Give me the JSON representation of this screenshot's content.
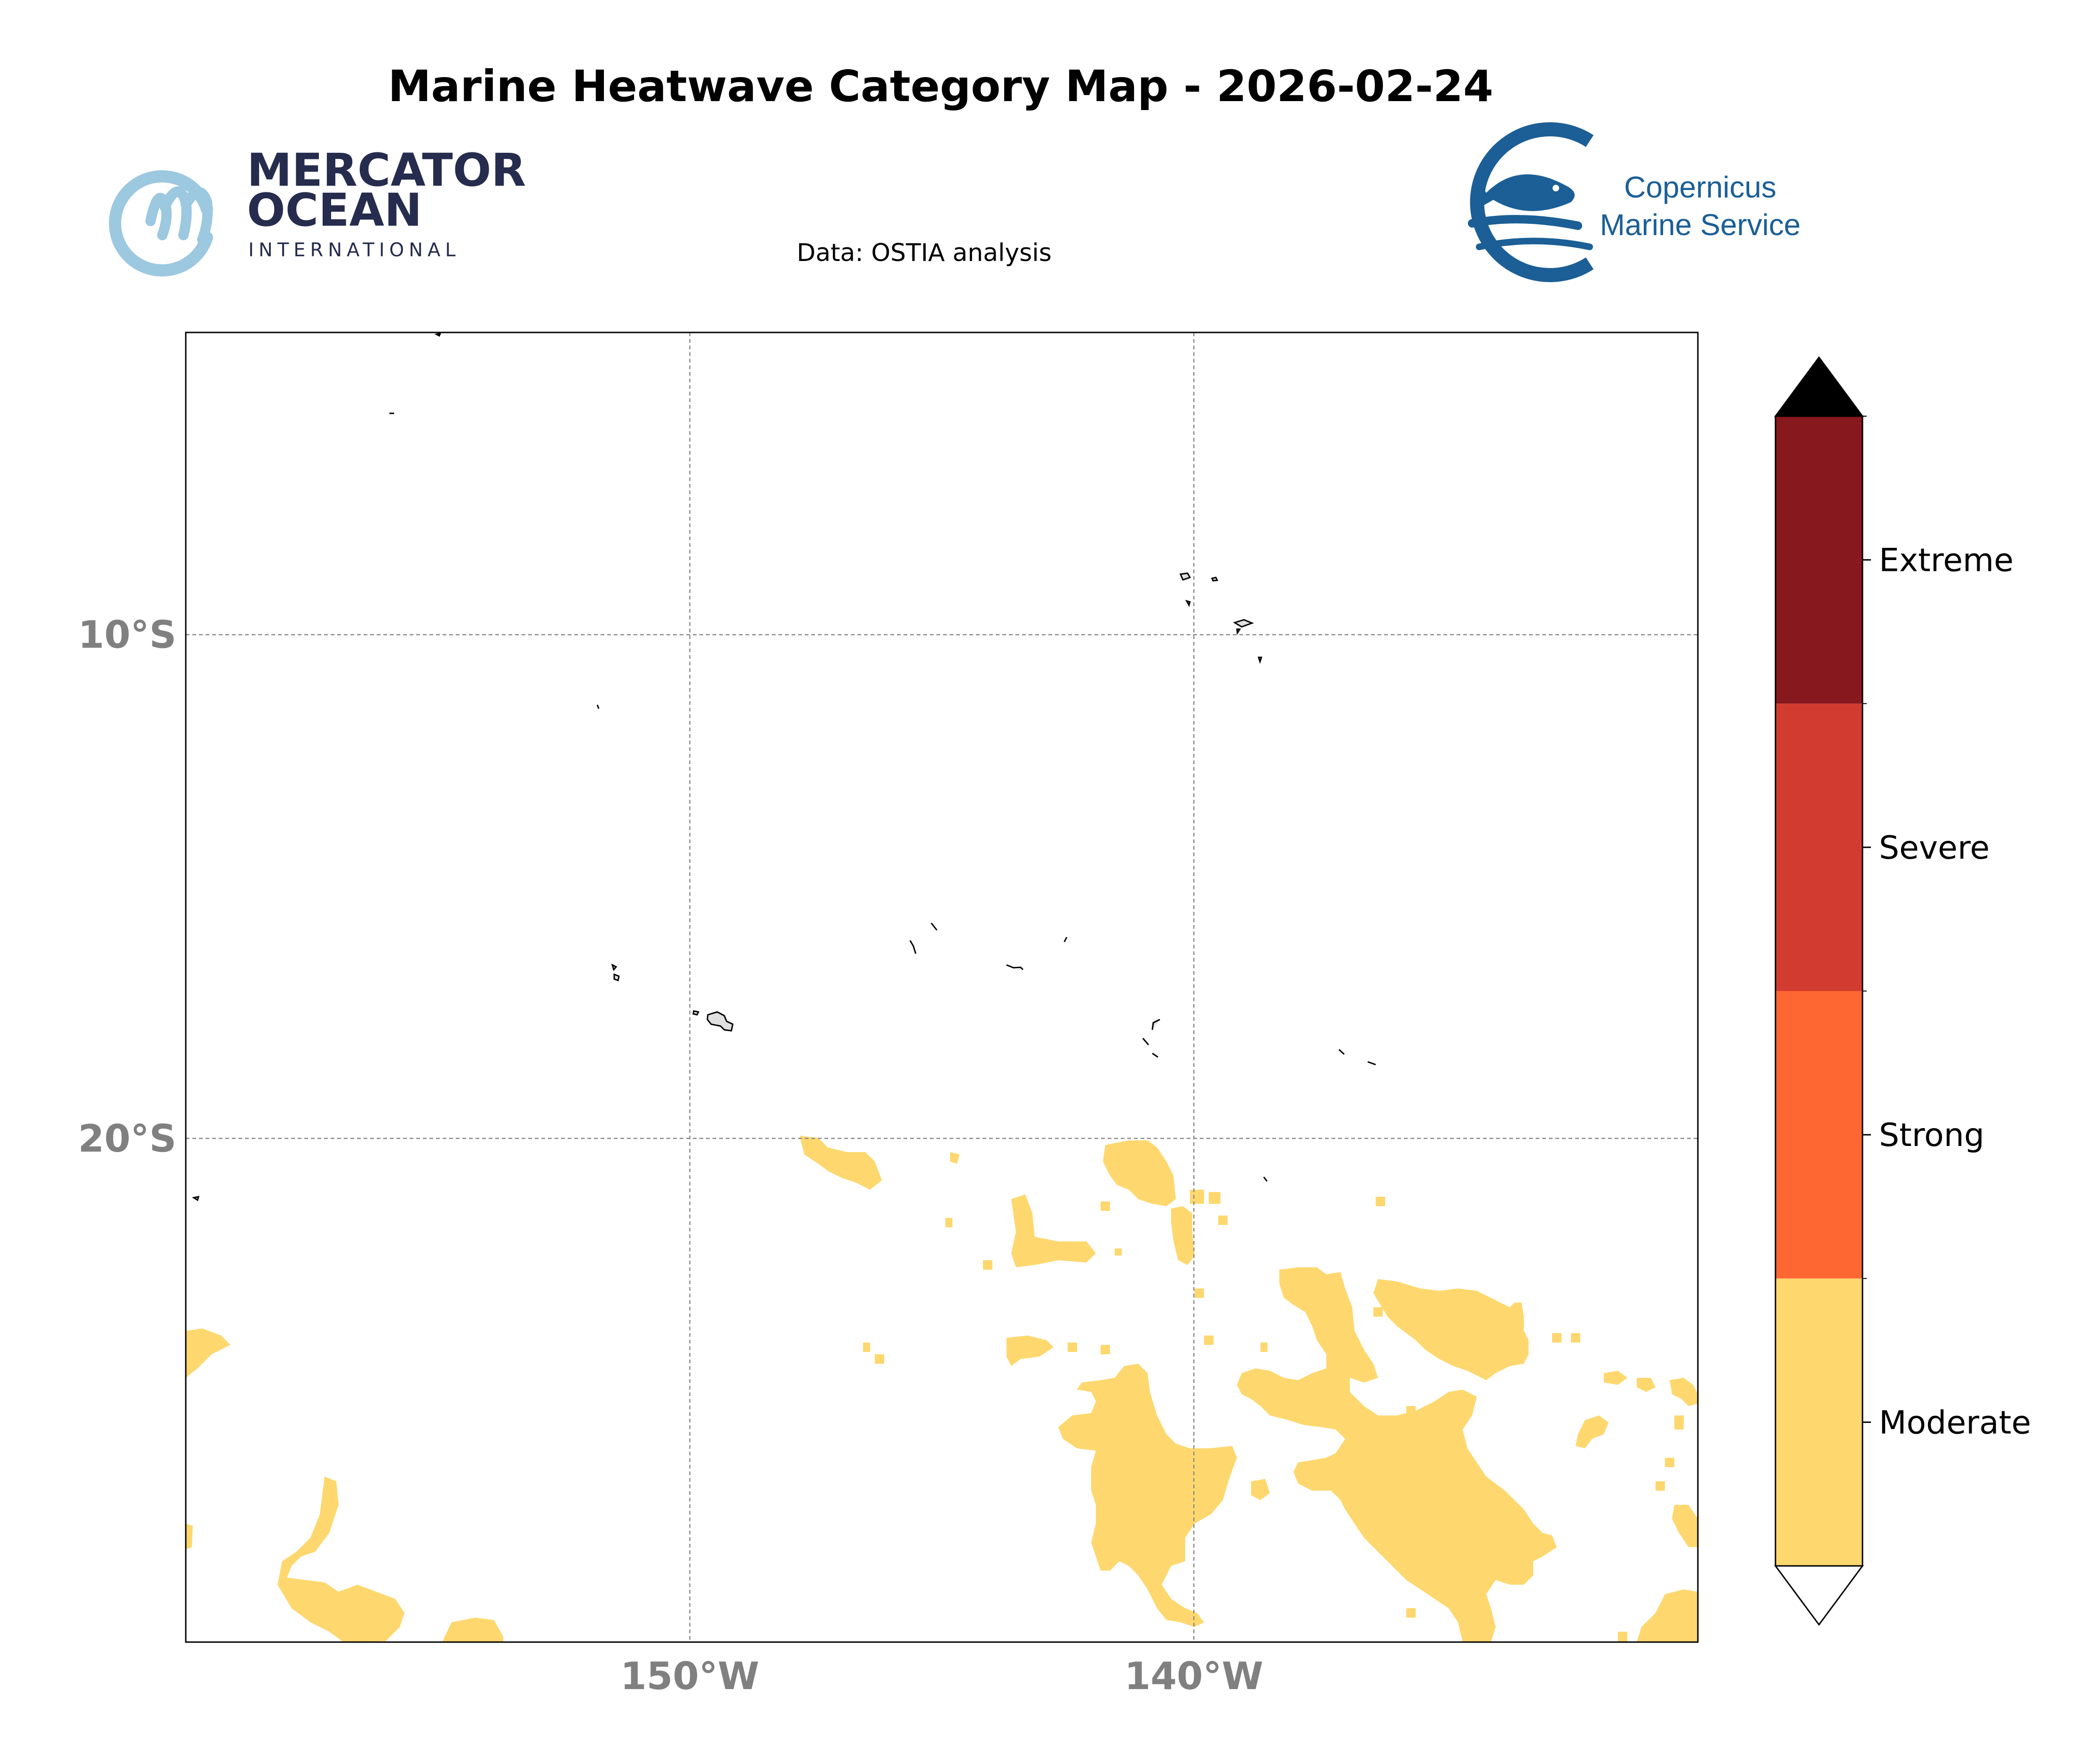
{
  "header": {
    "title": "Marine Heatwave Category Map - 2026-02-24",
    "subtitle": "Data: OSTIA analysis"
  },
  "logos": {
    "left": {
      "line1": "MERCATOR",
      "line2": "OCEAN",
      "line3": "INTERNATIONAL",
      "icon": "mercator-m-icon"
    },
    "right": {
      "line1": "Copernicus",
      "line2": "Marine Service",
      "icon": "copernicus-fish-icon"
    }
  },
  "map": {
    "projection": "PlateCarree",
    "lon_range": [
      -160,
      -130
    ],
    "lat_range": [
      -30,
      -4
    ],
    "x_ticks": [
      {
        "lon": -150,
        "label": "150°W"
      },
      {
        "lon": -140,
        "label": "140°W"
      }
    ],
    "y_ticks": [
      {
        "lat": -10,
        "label": "10°S"
      },
      {
        "lat": -20,
        "label": "20°S"
      }
    ],
    "gridlines": true,
    "land_color": "#e0e0e0",
    "heatwave_regions_category": "Moderate"
  },
  "colorbar": {
    "categories": [
      {
        "label": "Moderate",
        "color": "#fed86f"
      },
      {
        "label": "Strong",
        "color": "#fe6632"
      },
      {
        "label": "Severe",
        "color": "#d13b30"
      },
      {
        "label": "Extreme",
        "color": "#86181e"
      }
    ],
    "extend_max_color": "#000000",
    "extend_min_color": "#ffffff"
  }
}
